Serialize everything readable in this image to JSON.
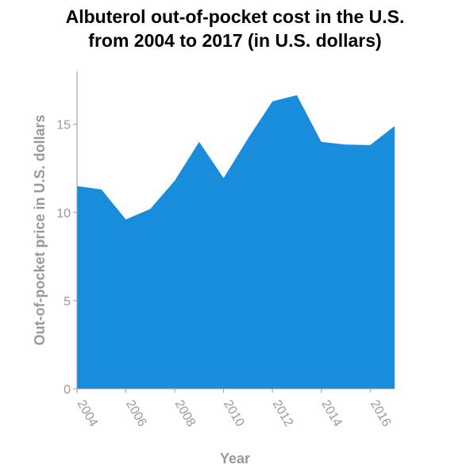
{
  "chart_data": {
    "type": "area",
    "title_lines": [
      "Albuterol out-of-pocket cost in the U.S.",
      "from 2004 to 2017 (in U.S. dollars)"
    ],
    "xlabel": "Year",
    "ylabel": "Out-of-pocket price in U.S. dollars",
    "x": [
      2004,
      2005,
      2006,
      2007,
      2008,
      2009,
      2010,
      2011,
      2012,
      2013,
      2014,
      2015,
      2016,
      2017
    ],
    "values": [
      11.5,
      11.3,
      9.6,
      10.2,
      11.8,
      14.0,
      11.95,
      14.2,
      16.3,
      16.65,
      14.0,
      13.85,
      13.82,
      14.9
    ],
    "xlim": [
      2004,
      2017
    ],
    "ylim": [
      0,
      18
    ],
    "xticks": [
      2004,
      2006,
      2008,
      2010,
      2012,
      2014,
      2016
    ],
    "yticks": [
      0,
      5,
      10,
      15
    ],
    "grid": false,
    "colors": {
      "fill": "#1a8cdc",
      "axis": "#999999",
      "label": "#999999"
    }
  }
}
